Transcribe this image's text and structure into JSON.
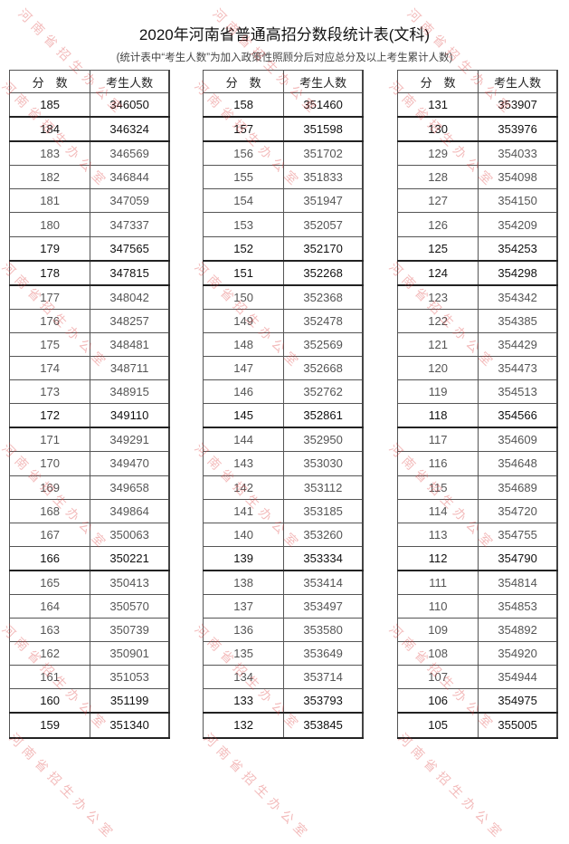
{
  "title": "2020年河南省普通高招分数段统计表(文科)",
  "subtitle": "(统计表中“考生人数”为加入政策性照顾分后对应总分及以上考生累计人数)",
  "headers": {
    "score": "分　数",
    "count": "考生人数"
  },
  "watermark": "河南省招生办公室",
  "watermark_color": "#dc3c3c",
  "tables": [
    {
      "rows": [
        [
          "185",
          "346050"
        ],
        [
          "184",
          "346324"
        ],
        [
          "183",
          "346569"
        ],
        [
          "182",
          "346844"
        ],
        [
          "181",
          "347059"
        ],
        [
          "180",
          "347337"
        ],
        [
          "179",
          "347565"
        ],
        [
          "178",
          "347815"
        ],
        [
          "177",
          "348042"
        ],
        [
          "176",
          "348257"
        ],
        [
          "175",
          "348481"
        ],
        [
          "174",
          "348711"
        ],
        [
          "173",
          "348915"
        ],
        [
          "172",
          "349110"
        ],
        [
          "171",
          "349291"
        ],
        [
          "170",
          "349470"
        ],
        [
          "169",
          "349658"
        ],
        [
          "168",
          "349864"
        ],
        [
          "167",
          "350063"
        ],
        [
          "166",
          "350221"
        ],
        [
          "165",
          "350413"
        ],
        [
          "164",
          "350570"
        ],
        [
          "163",
          "350739"
        ],
        [
          "162",
          "350901"
        ],
        [
          "161",
          "351053"
        ],
        [
          "160",
          "351199"
        ],
        [
          "159",
          "351340"
        ]
      ]
    },
    {
      "rows": [
        [
          "158",
          "351460"
        ],
        [
          "157",
          "351598"
        ],
        [
          "156",
          "351702"
        ],
        [
          "155",
          "351833"
        ],
        [
          "154",
          "351947"
        ],
        [
          "153",
          "352057"
        ],
        [
          "152",
          "352170"
        ],
        [
          "151",
          "352268"
        ],
        [
          "150",
          "352368"
        ],
        [
          "149",
          "352478"
        ],
        [
          "148",
          "352569"
        ],
        [
          "147",
          "352668"
        ],
        [
          "146",
          "352762"
        ],
        [
          "145",
          "352861"
        ],
        [
          "144",
          "352950"
        ],
        [
          "143",
          "353030"
        ],
        [
          "142",
          "353112"
        ],
        [
          "141",
          "353185"
        ],
        [
          "140",
          "353260"
        ],
        [
          "139",
          "353334"
        ],
        [
          "138",
          "353414"
        ],
        [
          "137",
          "353497"
        ],
        [
          "136",
          "353580"
        ],
        [
          "135",
          "353649"
        ],
        [
          "134",
          "353714"
        ],
        [
          "133",
          "353793"
        ],
        [
          "132",
          "353845"
        ]
      ]
    },
    {
      "rows": [
        [
          "131",
          "353907"
        ],
        [
          "130",
          "353976"
        ],
        [
          "129",
          "354033"
        ],
        [
          "128",
          "354098"
        ],
        [
          "127",
          "354150"
        ],
        [
          "126",
          "354209"
        ],
        [
          "125",
          "354253"
        ],
        [
          "124",
          "354298"
        ],
        [
          "123",
          "354342"
        ],
        [
          "122",
          "354385"
        ],
        [
          "121",
          "354429"
        ],
        [
          "120",
          "354473"
        ],
        [
          "119",
          "354513"
        ],
        [
          "118",
          "354566"
        ],
        [
          "117",
          "354609"
        ],
        [
          "116",
          "354648"
        ],
        [
          "115",
          "354689"
        ],
        [
          "114",
          "354720"
        ],
        [
          "113",
          "354755"
        ],
        [
          "112",
          "354790"
        ],
        [
          "111",
          "354814"
        ],
        [
          "110",
          "354853"
        ],
        [
          "109",
          "354892"
        ],
        [
          "108",
          "354920"
        ],
        [
          "107",
          "354944"
        ],
        [
          "106",
          "354975"
        ],
        [
          "105",
          "355005"
        ]
      ]
    }
  ]
}
